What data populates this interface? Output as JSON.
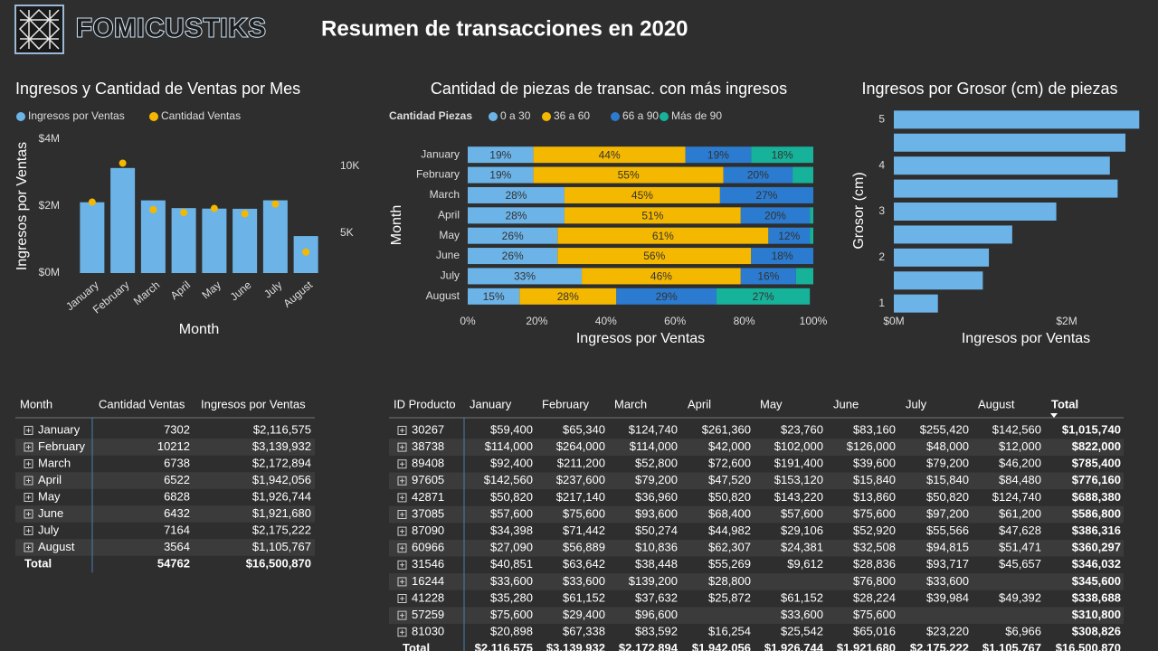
{
  "header": {
    "logo": "FOMICUSTIKS",
    "title": "Resumen de transacciones en 2020"
  },
  "chart_data": [
    {
      "type": "combo",
      "title": "Ingresos y Cantidad de Ventas por Mes",
      "x_label": "Month",
      "y_label": "Ingresos por Ventas",
      "categories": [
        "January",
        "February",
        "March",
        "April",
        "May",
        "June",
        "July",
        "August"
      ],
      "series": [
        {
          "name": "Ingresos por Ventas",
          "color": "#6cb4e8",
          "mark": "bar",
          "values": [
            2116575,
            3139932,
            2172894,
            1942056,
            1926744,
            1921680,
            2175222,
            1105767
          ]
        },
        {
          "name": "Cantidad Ventas",
          "color": "#f5b800",
          "mark": "dot",
          "axis": "y2",
          "values": [
            7302,
            10212,
            6738,
            6522,
            6828,
            6432,
            7164,
            3564
          ]
        }
      ],
      "ylim": [
        0,
        4000000
      ],
      "yticks": [
        {
          "value": 0,
          "label": "$0M"
        },
        {
          "value": 2000000,
          "label": "$2M"
        },
        {
          "value": 4000000,
          "label": "$4M"
        }
      ],
      "y2lim": [
        2000,
        12000
      ],
      "y2ticks": [
        {
          "value": 5000,
          "label": "5K"
        },
        {
          "value": 10000,
          "label": "10K"
        }
      ],
      "grid": false
    },
    {
      "type": "stacked100",
      "title": "Cantidad de piezas de transac. con más ingresos",
      "legend_title": "Cantidad Piezas",
      "x_label": "Ingresos por Ventas",
      "y_label": "Month",
      "categories": [
        "January",
        "February",
        "March",
        "April",
        "May",
        "June",
        "July",
        "August"
      ],
      "series": [
        {
          "name": "0 a 30",
          "color": "#6cb4e8",
          "values": [
            19,
            19,
            28,
            28,
            26,
            26,
            33,
            15
          ],
          "value_labels": [
            "19%",
            "19%",
            "28%",
            "28%",
            "26%",
            "26%",
            "33%",
            "15%"
          ]
        },
        {
          "name": "36 a 60",
          "color": "#f5b800",
          "values": [
            44,
            55,
            45,
            51,
            61,
            56,
            46,
            28
          ],
          "value_labels": [
            "44%",
            "55%",
            "45%",
            "51%",
            "61%",
            "56%",
            "46%",
            "28%"
          ]
        },
        {
          "name": "66 a 90",
          "color": "#2b7bd0",
          "values": [
            19,
            20,
            27,
            20,
            12,
            18,
            16,
            29
          ],
          "value_labels": [
            "19%",
            "20%",
            "27%",
            "20%",
            "12%",
            "18%",
            "16%",
            "29%"
          ]
        },
        {
          "name": "Más de 90",
          "color": "#16b39a",
          "values": [
            18,
            6,
            0,
            1,
            1,
            0,
            5,
            27
          ],
          "value_labels": [
            "18%",
            null,
            null,
            null,
            null,
            null,
            null,
            "27%"
          ]
        }
      ],
      "xlim": [
        0,
        100
      ],
      "xticks": [
        {
          "value": 0,
          "label": "0%"
        },
        {
          "value": 20,
          "label": "20%"
        },
        {
          "value": 40,
          "label": "40%"
        },
        {
          "value": 60,
          "label": "60%"
        },
        {
          "value": 80,
          "label": "80%"
        },
        {
          "value": 100,
          "label": "100%"
        }
      ],
      "grid": false
    },
    {
      "type": "hbar",
      "title": "Ingresos por Grosor (cm) de piezas",
      "x_label": "Ingresos por Ventas",
      "y_label": "Grosor (cm)",
      "color": "#6cb4e8",
      "y": [
        5,
        4.5,
        4,
        3.5,
        3,
        2.5,
        2,
        1.5,
        1
      ],
      "values": [
        2840000,
        2680000,
        2500000,
        2590000,
        1880000,
        1370000,
        1100000,
        1030000,
        510000
      ],
      "xlim": [
        0,
        2900000
      ],
      "xticks": [
        {
          "value": 0,
          "label": "$0M"
        },
        {
          "value": 2000000,
          "label": "$2M"
        }
      ],
      "ylim": [
        0.6,
        5.4
      ],
      "yticks": [
        1,
        2,
        3,
        4,
        5
      ],
      "grid": false
    }
  ],
  "month_table": {
    "columns": [
      "Month",
      "Cantidad Ventas",
      "Ingresos por Ventas"
    ],
    "rows": [
      [
        "January",
        "7302",
        "$2,116,575"
      ],
      [
        "February",
        "10212",
        "$3,139,932"
      ],
      [
        "March",
        "6738",
        "$2,172,894"
      ],
      [
        "April",
        "6522",
        "$1,942,056"
      ],
      [
        "May",
        "6828",
        "$1,926,744"
      ],
      [
        "June",
        "6432",
        "$1,921,680"
      ],
      [
        "July",
        "7164",
        "$2,175,222"
      ],
      [
        "August",
        "3564",
        "$1,105,767"
      ]
    ],
    "total": [
      "Total",
      "54762",
      "$16,500,870"
    ]
  },
  "product_table": {
    "columns": [
      "ID Producto",
      "January",
      "February",
      "March",
      "April",
      "May",
      "June",
      "July",
      "August",
      "Total"
    ],
    "rows": [
      [
        "30267",
        "$59,400",
        "$65,340",
        "$124,740",
        "$261,360",
        "$23,760",
        "$83,160",
        "$255,420",
        "$142,560",
        "$1,015,740"
      ],
      [
        "38738",
        "$114,000",
        "$264,000",
        "$114,000",
        "$42,000",
        "$102,000",
        "$126,000",
        "$48,000",
        "$12,000",
        "$822,000"
      ],
      [
        "89408",
        "$92,400",
        "$211,200",
        "$52,800",
        "$72,600",
        "$191,400",
        "$39,600",
        "$79,200",
        "$46,200",
        "$785,400"
      ],
      [
        "97605",
        "$142,560",
        "$237,600",
        "$79,200",
        "$47,520",
        "$153,120",
        "$15,840",
        "$15,840",
        "$84,480",
        "$776,160"
      ],
      [
        "42871",
        "$50,820",
        "$217,140",
        "$36,960",
        "$50,820",
        "$143,220",
        "$13,860",
        "$50,820",
        "$124,740",
        "$688,380"
      ],
      [
        "37085",
        "$57,600",
        "$75,600",
        "$93,600",
        "$68,400",
        "$57,600",
        "$75,600",
        "$97,200",
        "$61,200",
        "$586,800"
      ],
      [
        "87090",
        "$34,398",
        "$71,442",
        "$50,274",
        "$44,982",
        "$29,106",
        "$52,920",
        "$55,566",
        "$47,628",
        "$386,316"
      ],
      [
        "60966",
        "$27,090",
        "$56,889",
        "$10,836",
        "$62,307",
        "$24,381",
        "$32,508",
        "$94,815",
        "$51,471",
        "$360,297"
      ],
      [
        "31546",
        "$40,851",
        "$63,642",
        "$38,448",
        "$55,269",
        "$9,612",
        "$28,836",
        "$93,717",
        "$45,657",
        "$346,032"
      ],
      [
        "16244",
        "$33,600",
        "$33,600",
        "$139,200",
        "$28,800",
        null,
        "$76,800",
        "$33,600",
        null,
        "$345,600"
      ],
      [
        "41228",
        "$35,280",
        "$61,152",
        "$37,632",
        "$25,872",
        "$61,152",
        "$28,224",
        "$39,984",
        "$49,392",
        "$338,688"
      ],
      [
        "57259",
        "$75,600",
        "$29,400",
        "$96,600",
        null,
        "$33,600",
        "$75,600",
        null,
        null,
        "$310,800"
      ],
      [
        "81030",
        "$20,898",
        "$67,338",
        "$83,592",
        "$16,254",
        "$25,542",
        "$65,016",
        "$23,220",
        "$6,966",
        "$308,826"
      ]
    ],
    "total": [
      "Total",
      "$2,116,575",
      "$3,139,932",
      "$2,172,894",
      "$1,942,056",
      "$1,926,744",
      "$1,921,680",
      "$2,175,222",
      "$1,105,767",
      "$16,500,870"
    ]
  }
}
